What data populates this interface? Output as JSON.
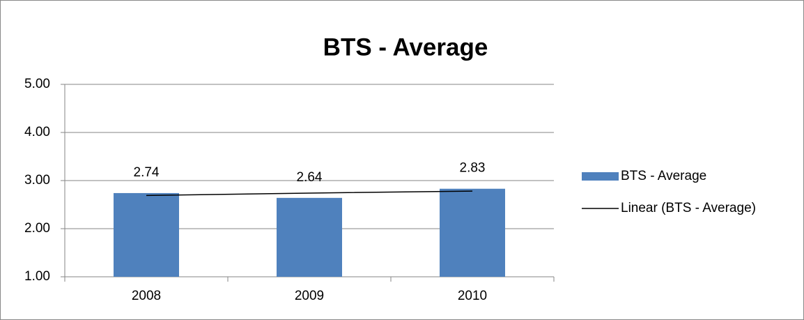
{
  "chart_data": {
    "type": "bar",
    "title": "BTS - Average",
    "categories": [
      "2008",
      "2009",
      "2010"
    ],
    "series": [
      {
        "name": "BTS - Average",
        "color": "#4f81bd",
        "values": [
          2.74,
          2.64,
          2.83
        ]
      },
      {
        "name": "Linear (BTS - Average)",
        "color": "#000000",
        "type": "line",
        "values": [
          2.69,
          2.74,
          2.78
        ]
      }
    ],
    "ylim": [
      1,
      5
    ],
    "yticks": [
      {
        "value": 1,
        "label": "1.00"
      },
      {
        "value": 2,
        "label": "2.00"
      },
      {
        "value": 3,
        "label": "3.00"
      },
      {
        "value": 4,
        "label": "4.00"
      },
      {
        "value": 5,
        "label": "5.00"
      }
    ],
    "grid": true,
    "legend": "right"
  }
}
